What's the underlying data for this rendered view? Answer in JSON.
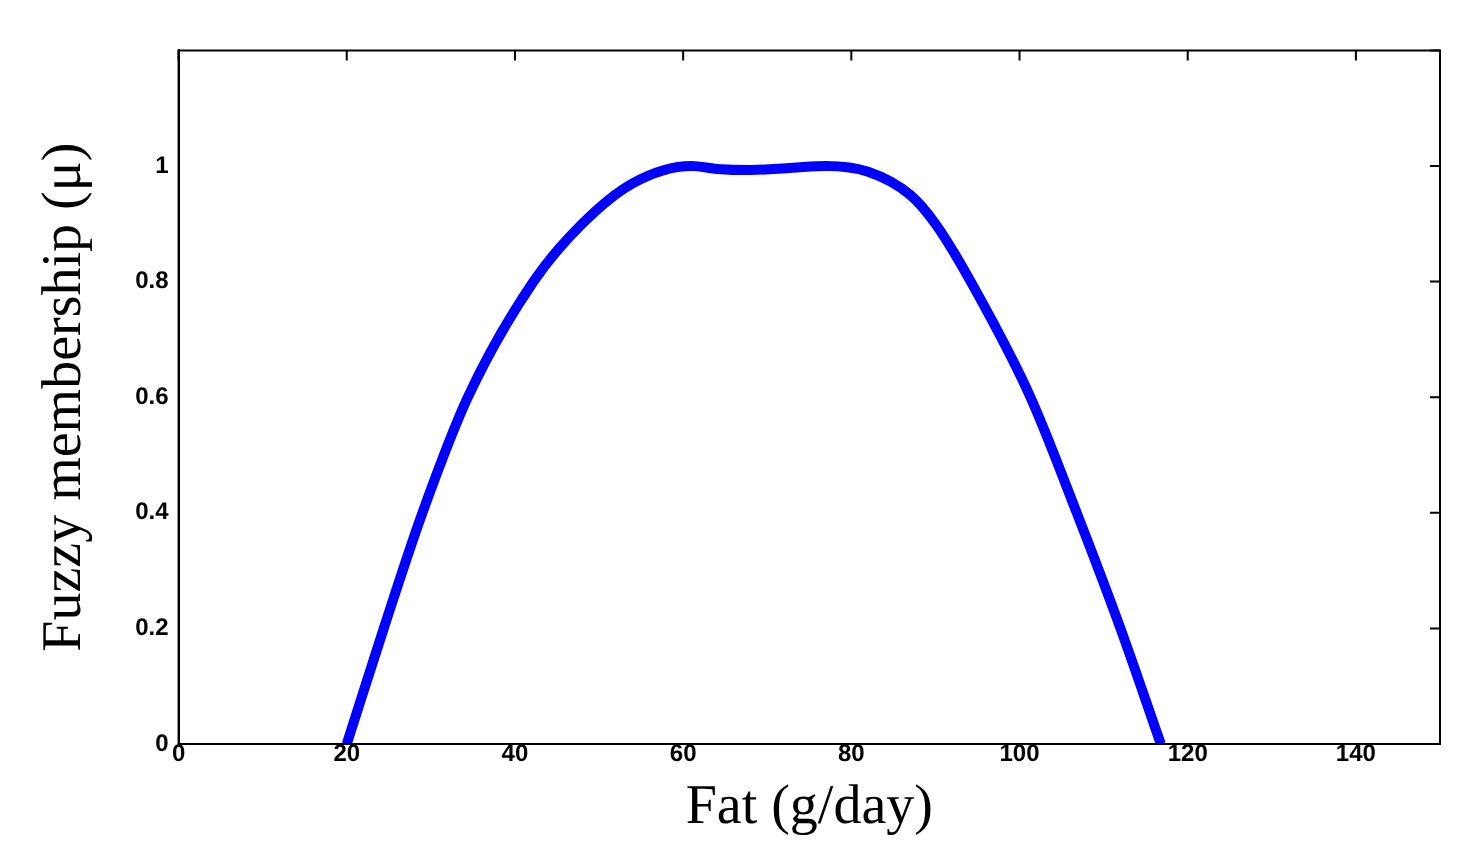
{
  "chart_data": {
    "type": "line",
    "xlabel": "Fat (g/day)",
    "ylabel": "Fuzzy membership (μ)",
    "xlim": [
      0,
      150
    ],
    "ylim": [
      0,
      1.2
    ],
    "xticks": [
      0,
      20,
      40,
      60,
      80,
      100,
      120,
      140
    ],
    "yticks": [
      0,
      0.2,
      0.4,
      0.6,
      0.8,
      1,
      {
        "value": 1.2,
        "label": null
      }
    ],
    "grid": false,
    "legend": false,
    "marker": "none",
    "line_style": "solid",
    "series": [
      {
        "color": "#0000ff",
        "x": [
          20,
          24.4,
          29,
          34.4,
          42.2,
          48,
          54,
          61,
          64,
          68,
          73,
          77,
          82,
          87,
          90,
          94.2,
          101.3,
          106.8,
          112,
          116.8
        ],
        "values": [
          0,
          0.2,
          0.4,
          0.6,
          0.8,
          0.9,
          0.97,
          1,
          0.995,
          0.993,
          0.997,
          1,
          0.99,
          0.95,
          0.9,
          0.8,
          0.6,
          0.4,
          0.2,
          0
        ]
      }
    ]
  }
}
